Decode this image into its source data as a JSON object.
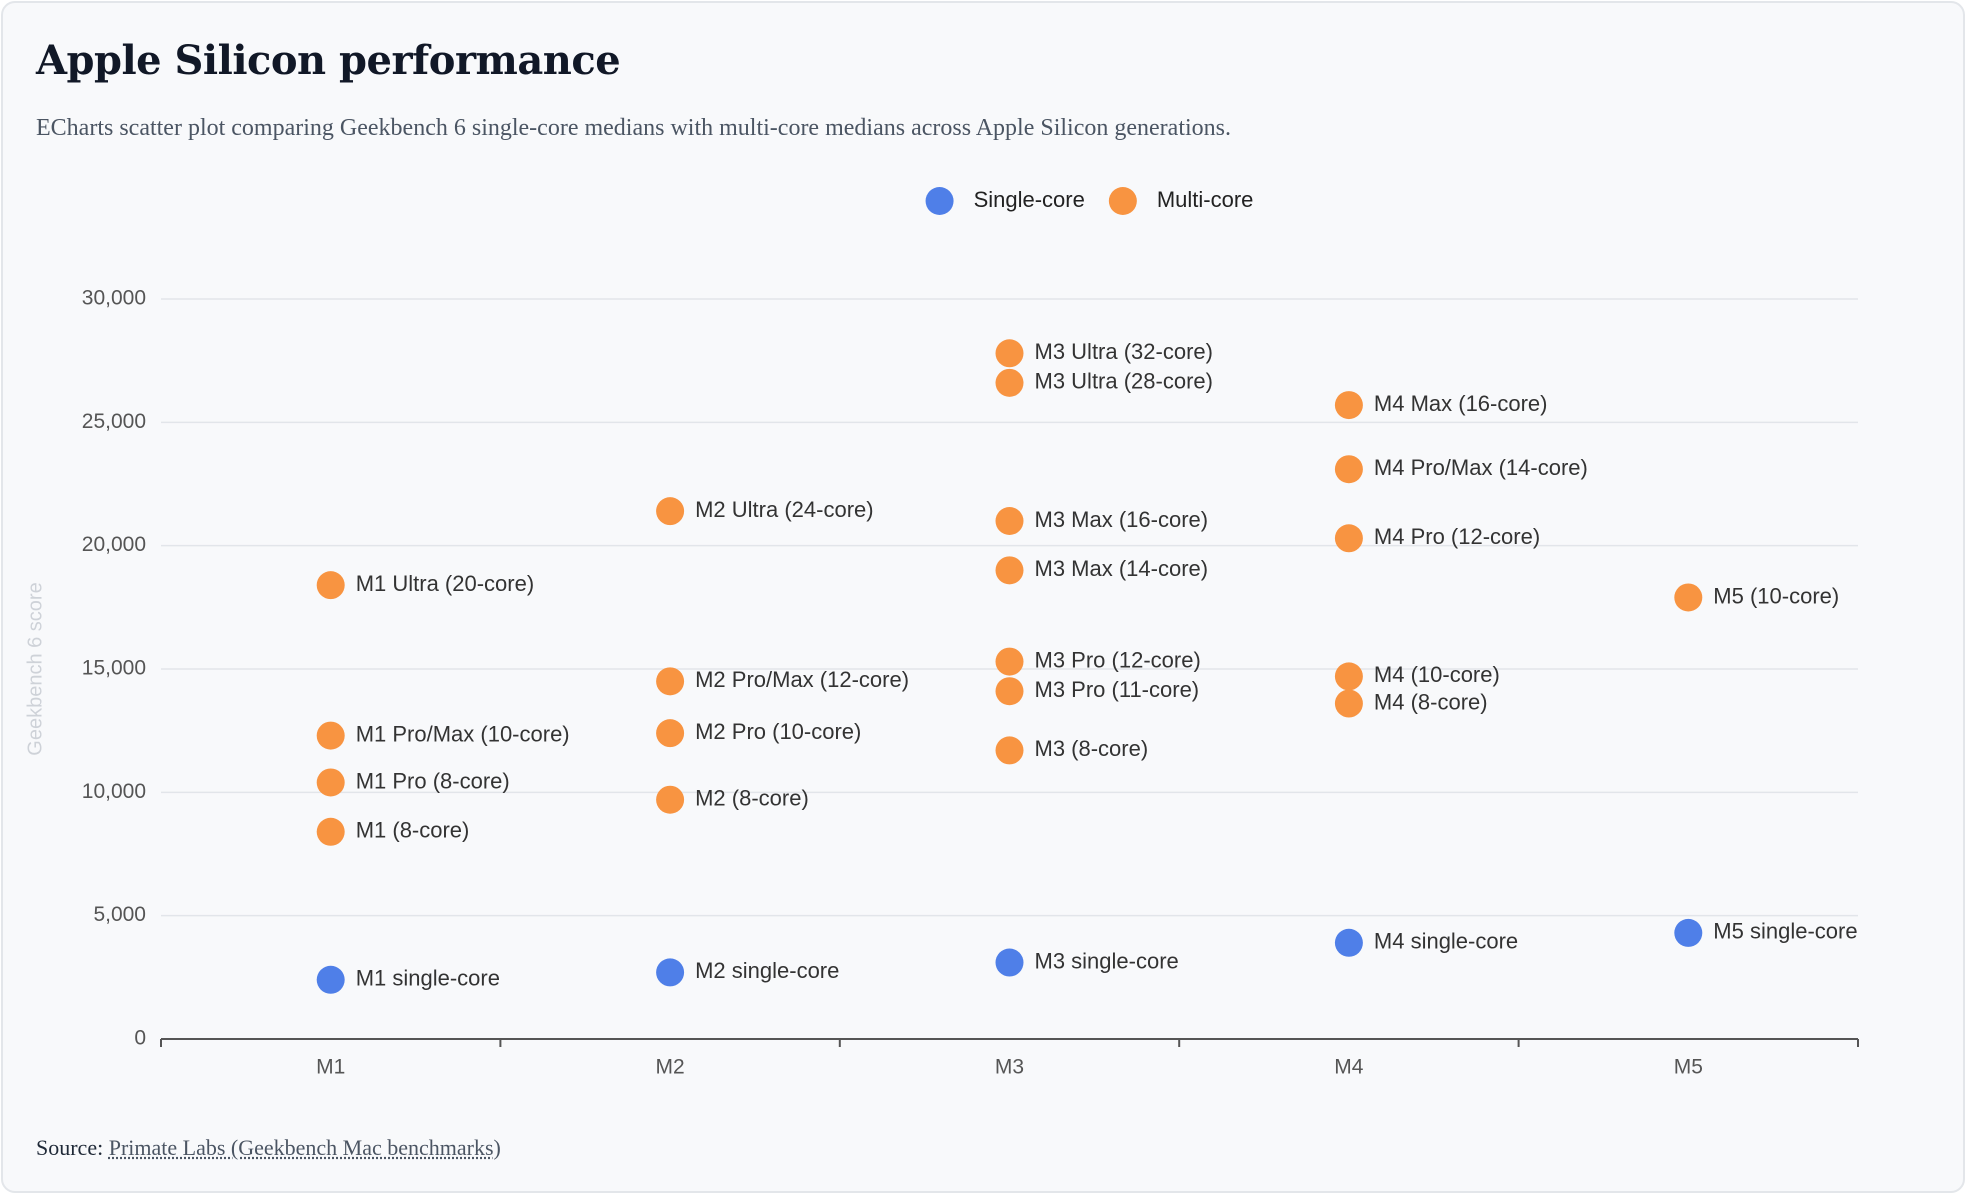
{
  "chart_data": {
    "type": "scatter",
    "title": "Apple Silicon performance",
    "subtitle": "ECharts scatter plot comparing Geekbench 6 single-core medians with multi-core medians across Apple Silicon generations.",
    "source_prefix": "Source:",
    "source_link": "Primate Labs (Geekbench Mac benchmarks)",
    "y_label": "Geekbench 6 score",
    "categories": [
      "M1",
      "M2",
      "M3",
      "M4",
      "M5"
    ],
    "ylim": [
      0,
      30000
    ],
    "yticks": [
      0,
      {
        "value": 5000,
        "label": "5,000"
      },
      {
        "value": 10000,
        "label": "10,000"
      },
      {
        "value": 15000,
        "label": "15,000"
      },
      {
        "value": 20000,
        "label": "20,000"
      },
      {
        "value": 25000,
        "label": "25,000"
      },
      {
        "value": 30000,
        "label": "30,000"
      }
    ],
    "grid": true,
    "legend": "top",
    "series": [
      {
        "name": "Single-core",
        "color": "#4f7fe8",
        "x": [
          "M1",
          "M2",
          "M3",
          "M4",
          "M5"
        ],
        "values": [
          2400,
          2700,
          3100,
          3900,
          4300
        ],
        "labels": [
          "M1 single-core",
          "M2 single-core",
          "M3 single-core",
          "M4 single-core",
          "M5 single-core"
        ]
      },
      {
        "name": "Multi-core",
        "color": "#f89441",
        "x": [
          "M1",
          "M1",
          "M1",
          "M1",
          "M2",
          "M2",
          "M2",
          "M2",
          "M3",
          "M3",
          "M3",
          "M3",
          "M3",
          "M3",
          "M3",
          "M4",
          "M4",
          "M4",
          "M4",
          "M4",
          "M5"
        ],
        "values": [
          8400,
          10400,
          12300,
          18400,
          9700,
          12400,
          14500,
          21400,
          11700,
          14100,
          15300,
          19000,
          21000,
          26600,
          27800,
          13600,
          14700,
          20300,
          23100,
          25700,
          17900
        ],
        "labels": [
          "M1 (8-core)",
          "M1 Pro (8-core)",
          "M1 Pro/Max (10-core)",
          "M1 Ultra (20-core)",
          "M2 (8-core)",
          "M2 Pro (10-core)",
          "M2 Pro/Max (12-core)",
          "M2 Ultra (24-core)",
          "M3 (8-core)",
          "M3 Pro (11-core)",
          "M3 Pro (12-core)",
          "M3 Max (14-core)",
          "M3 Max (16-core)",
          "M3 Ultra (28-core)",
          "M3 Ultra (32-core)",
          "M4 (8-core)",
          "M4 (10-core)",
          "M4 Pro (12-core)",
          "M4 Pro/Max (14-core)",
          "M4 Max (16-core)",
          "M5 (10-core)"
        ]
      }
    ]
  }
}
